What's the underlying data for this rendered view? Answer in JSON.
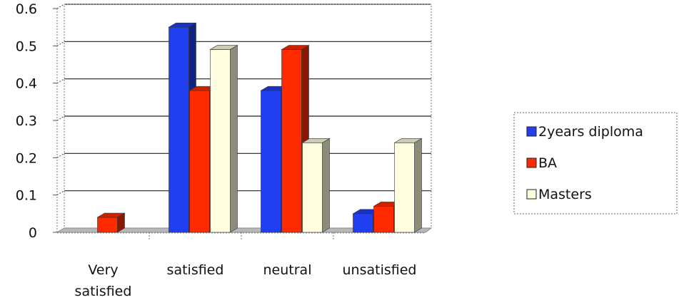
{
  "chart_data": {
    "type": "bar",
    "categories": [
      [
        "Very",
        "satisfied"
      ],
      [
        "satisfied"
      ],
      [
        "neutral"
      ],
      [
        "unsatisfied"
      ]
    ],
    "series": [
      {
        "name": "2years diploma",
        "values": [
          0,
          0.55,
          0.38,
          0.05
        ],
        "color": "#1f3ff0"
      },
      {
        "name": "BA",
        "values": [
          0.04,
          0.38,
          0.49,
          0.07
        ],
        "color": "#ff2a00"
      },
      {
        "name": "Masters",
        "values": [
          0,
          0.49,
          0.24,
          0.24
        ],
        "color": "#ffffe0"
      }
    ],
    "ylim": [
      0,
      0.6
    ],
    "yticks": [
      "0",
      "0.1",
      "0.2",
      "0.3",
      "0.4",
      "0.5",
      "0.6"
    ],
    "grid": true,
    "legend_position": "right",
    "title": "",
    "xlabel": "",
    "ylabel": ""
  }
}
